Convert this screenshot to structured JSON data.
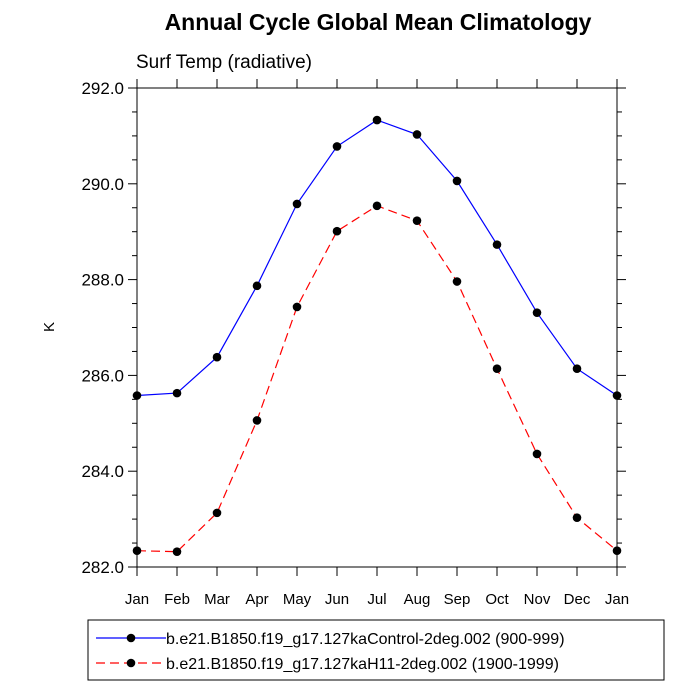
{
  "chart_data": {
    "type": "line",
    "title": "Annual Cycle Global Mean Climatology",
    "subtitle": "Surf Temp (radiative)",
    "xlabel": "",
    "ylabel": "K",
    "categories": [
      "Jan",
      "Feb",
      "Mar",
      "Apr",
      "May",
      "Jun",
      "Jul",
      "Aug",
      "Sep",
      "Oct",
      "Nov",
      "Dec",
      "Jan"
    ],
    "ylim": [
      282.0,
      292.0
    ],
    "yticks": [
      282.0,
      284.0,
      286.0,
      288.0,
      290.0,
      292.0
    ],
    "ytick_labels": [
      "282.0",
      "284.0",
      "286.0",
      "288.0",
      "290.0",
      "292.0"
    ],
    "grid": false,
    "legend_position": "bottom",
    "series": [
      {
        "name": "b.e21.B1850.f19_g17.127kaControl-2deg.002 (900-999)",
        "color": "#0000ff",
        "dash": "solid",
        "marker": "circle",
        "values": [
          285.58,
          285.63,
          286.38,
          287.87,
          289.58,
          290.78,
          291.33,
          291.03,
          290.06,
          288.73,
          287.31,
          286.14,
          285.58
        ]
      },
      {
        "name": "b.e21.B1850.f19_g17.127kaH11-2deg.002 (1900-1999)",
        "color": "#ff0000",
        "dash": "dashed",
        "marker": "circle",
        "values": [
          282.34,
          282.32,
          283.13,
          285.06,
          287.43,
          289.01,
          289.54,
          289.23,
          287.96,
          286.14,
          284.36,
          283.03,
          282.34
        ]
      }
    ]
  }
}
